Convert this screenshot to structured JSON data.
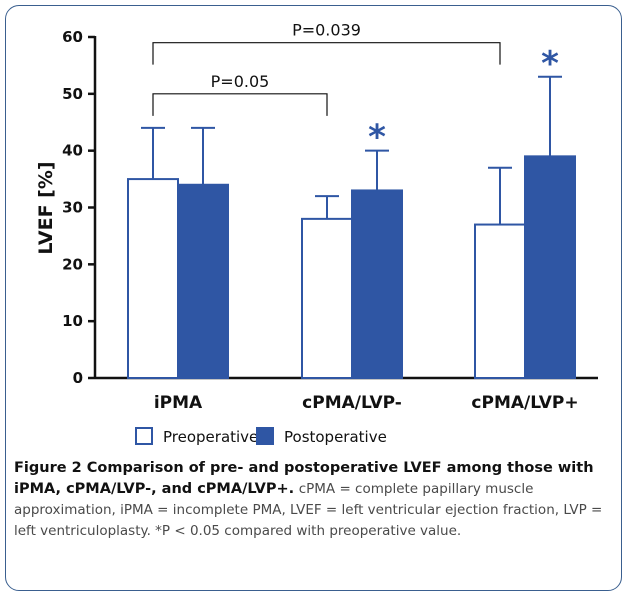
{
  "chart_data": {
    "type": "bar",
    "categories": [
      "iPMA",
      "cPMA/LVP-",
      "cPMA/LVP+"
    ],
    "series": [
      {
        "name": "Preoperative",
        "values": [
          35,
          28,
          27
        ],
        "error": [
          9,
          4,
          10
        ],
        "fill": "#ffffff",
        "stroke": "#2f56a4"
      },
      {
        "name": "Postoperative",
        "values": [
          34,
          33,
          39
        ],
        "error": [
          10,
          7,
          14
        ],
        "fill": "#2f56a4",
        "stroke": "#2f56a4"
      }
    ],
    "ylabel": "LVEF [%]",
    "xlabel": "",
    "ylim": [
      0,
      60
    ],
    "yticks": [
      0,
      10,
      20,
      30,
      40,
      50,
      60
    ],
    "significance_marks": [
      {
        "category_index": 1,
        "series_index": 1,
        "symbol": "*"
      },
      {
        "category_index": 2,
        "series_index": 1,
        "symbol": "*"
      }
    ],
    "brackets": [
      {
        "from_category": 0,
        "to_category": 1,
        "level": 50,
        "label": "P=0.05"
      },
      {
        "from_category": 0,
        "to_category": 2,
        "level": 59,
        "label": "P=0.039"
      }
    ],
    "legend_position": "bottom-left",
    "grid": false
  },
  "caption": {
    "title": "Figure 2 Comparison of pre- and postoperative LVEF among those with iPMA, cPMA/LVP-, and cPMA/LVP+.",
    "text": "cPMA = complete papillary muscle approximation, iPMA = incomplete PMA, LVEF = left ventricular ejection fraction, LVP = left ventriculoplasty. *P < 0.05 compared with preoperative value."
  }
}
